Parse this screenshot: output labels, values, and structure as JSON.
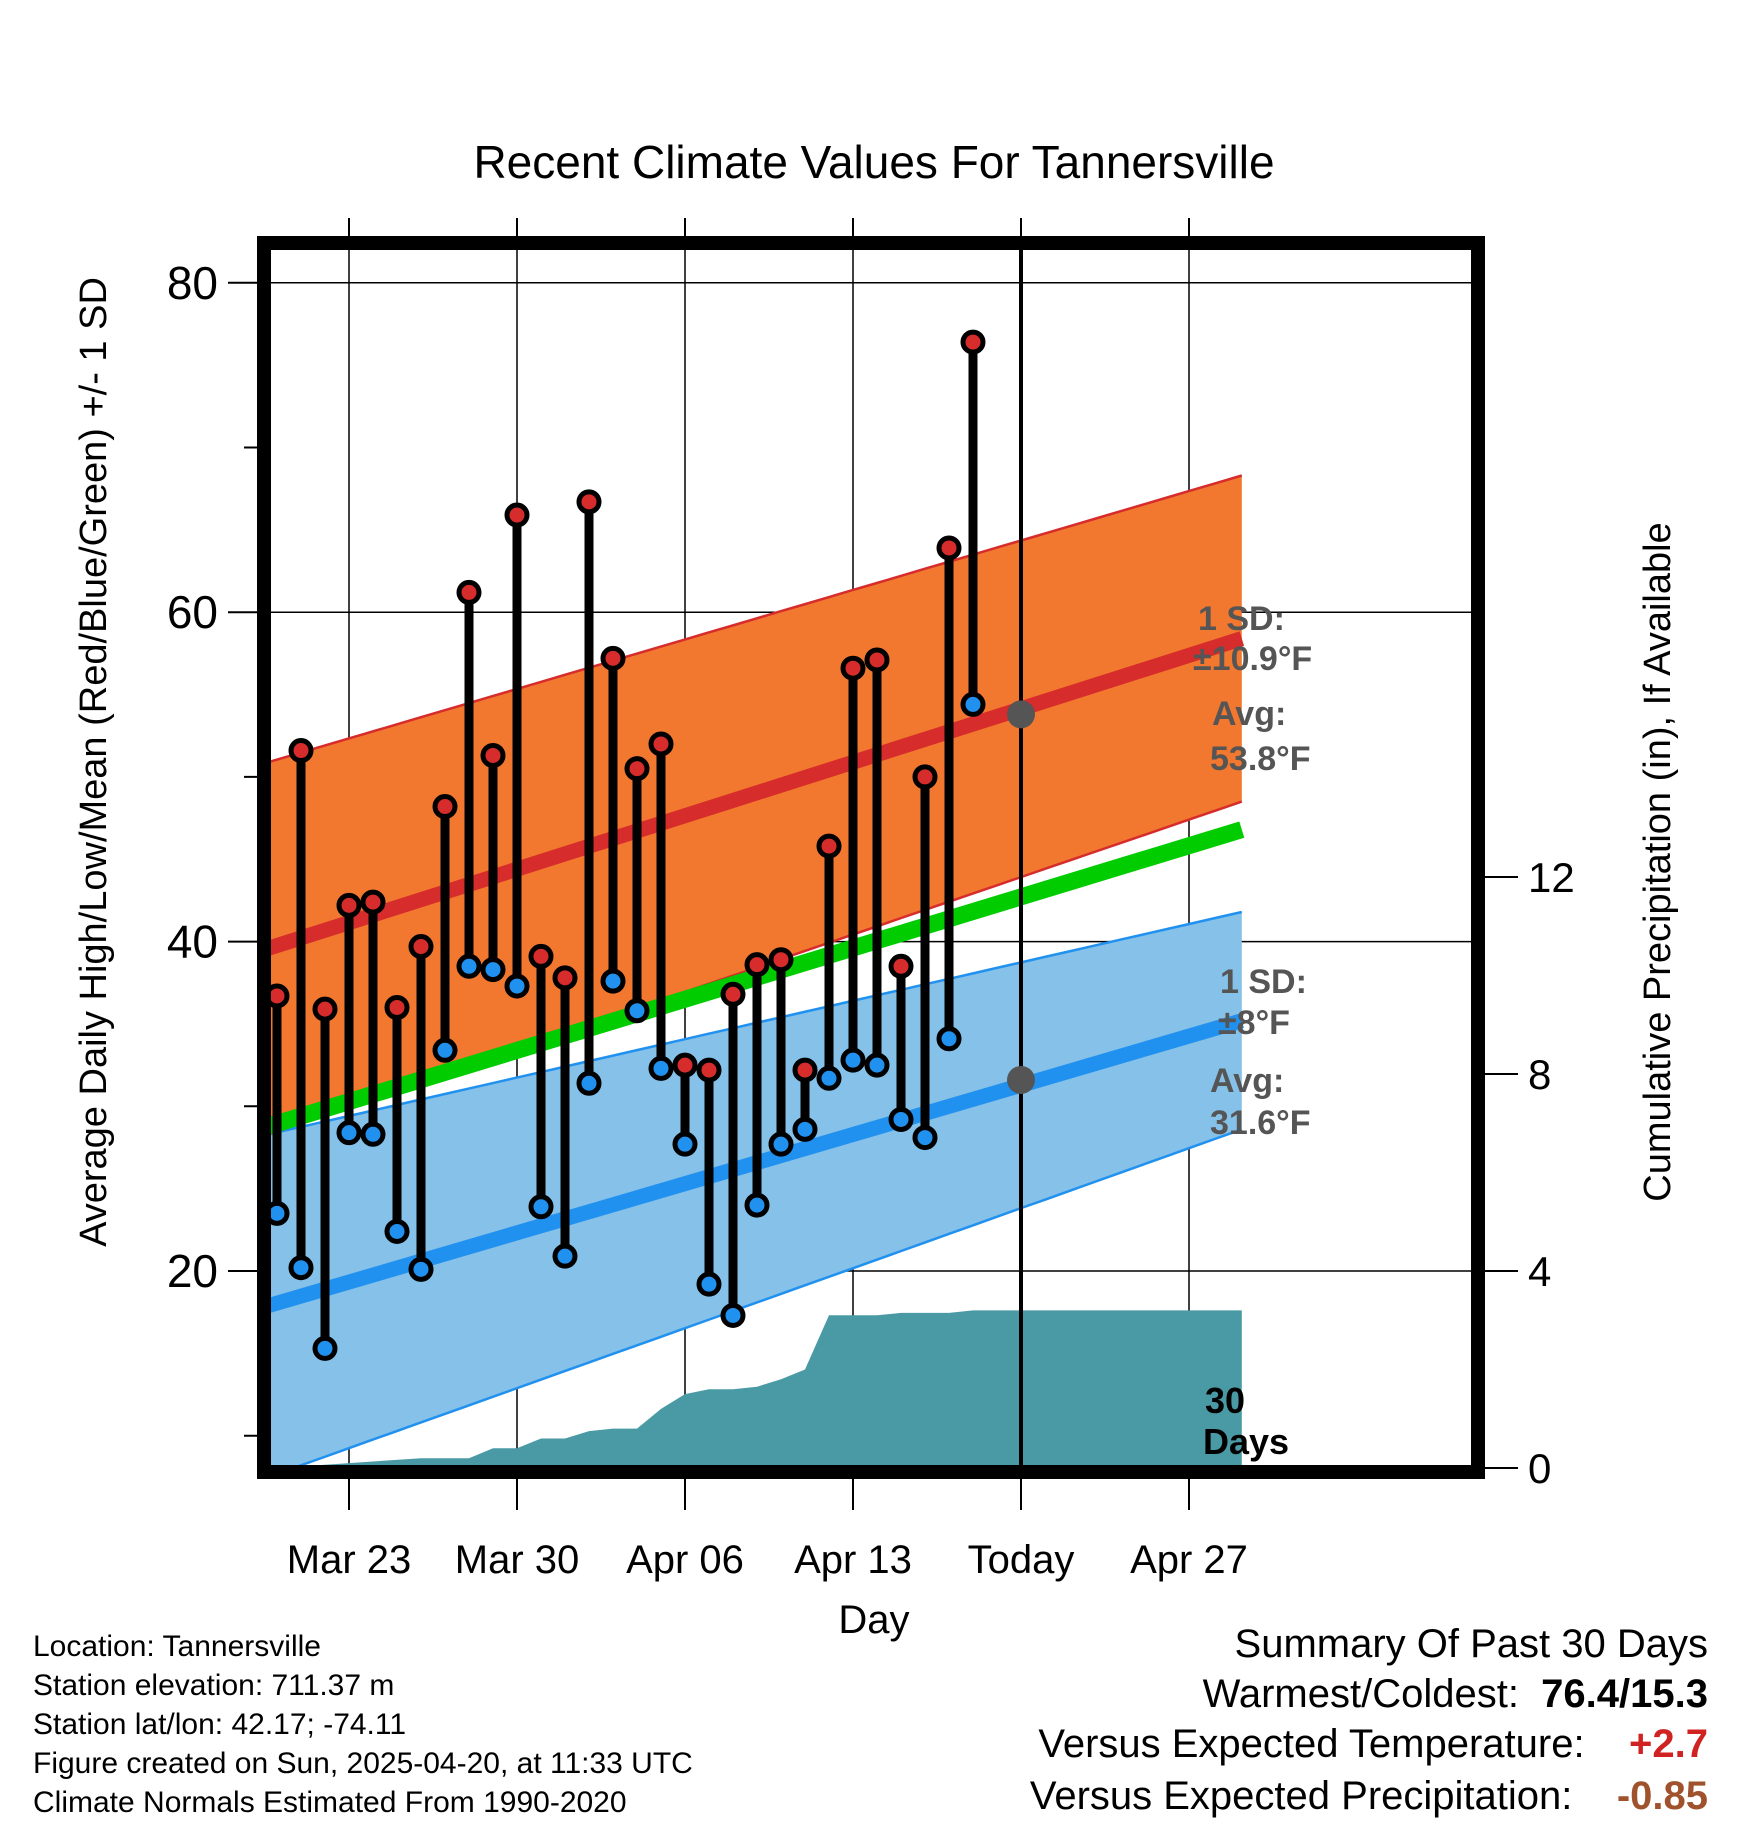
{
  "chart_data": {
    "type": "line",
    "title": "Recent Climate Values For Tannersville",
    "xlabel": "Day",
    "ylabel_left": "Average Daily High/Low/Mean (Red/Blue/Green) +/- 1 SD",
    "ylabel_right": "Cumulative Precipitation (in), If Available",
    "x_ticks": [
      "Mar 23",
      "Mar 30",
      "Apr 06",
      "Apr 13",
      "Today",
      "Apr 27"
    ],
    "x_tick_days": [
      3,
      10,
      17,
      24,
      31,
      38
    ],
    "x_range_days": [
      -0.3,
      40.2
    ],
    "ylim_left": [
      8,
      82
    ],
    "y_ticks_left": [
      20,
      40,
      60,
      80
    ],
    "ylim_right": [
      0,
      24.7
    ],
    "y_ticks_right": [
      0,
      4,
      8,
      12
    ],
    "grid": true,
    "today_day": 31,
    "days": [
      0,
      1,
      2,
      3,
      4,
      5,
      6,
      7,
      8,
      9,
      10,
      11,
      12,
      13,
      14,
      15,
      16,
      17,
      18,
      19,
      20,
      21,
      22,
      23,
      24,
      25,
      26,
      27,
      28,
      29,
      30
    ],
    "series": [
      {
        "name": "High",
        "values": [
          36.7,
          51.6,
          35.9,
          42.2,
          42.4,
          36.0,
          39.7,
          48.2,
          61.2,
          51.3,
          65.9,
          39.1,
          37.8,
          66.7,
          57.2,
          50.5,
          52.0,
          32.5,
          32.2,
          36.8,
          38.6,
          38.9,
          32.2,
          45.8,
          56.6,
          57.1,
          38.5,
          50.0,
          63.9,
          76.4,
          null
        ]
      },
      {
        "name": "Low",
        "values": [
          23.5,
          20.2,
          15.3,
          28.4,
          28.3,
          22.4,
          20.1,
          33.4,
          38.5,
          38.3,
          37.3,
          23.9,
          20.9,
          31.4,
          37.6,
          35.8,
          32.3,
          27.7,
          19.2,
          17.3,
          24.0,
          27.7,
          28.6,
          31.7,
          32.8,
          32.5,
          29.2,
          28.1,
          34.1,
          54.4,
          null
        ]
      }
    ],
    "normal_high": {
      "start": 39.6,
      "end": 58.4,
      "sd_start": 11.3,
      "sd_end": 9.9
    },
    "normal_low": {
      "start": 17.9,
      "end": 35.2,
      "sd_start": 10.4,
      "sd_end": 6.6
    },
    "normal_mean": {
      "start": 28.8,
      "end": 46.8
    },
    "precip_days": [
      0,
      3,
      6,
      8,
      9,
      10,
      11,
      12,
      13,
      14,
      15,
      16,
      17,
      18,
      19,
      20,
      21,
      22,
      23,
      24,
      25,
      26,
      27,
      28,
      29,
      30,
      40.2
    ],
    "precip_cumulative": [
      0,
      0.1,
      0.2,
      0.2,
      0.4,
      0.4,
      0.6,
      0.6,
      0.75,
      0.8,
      0.8,
      1.2,
      1.5,
      1.6,
      1.6,
      1.65,
      1.8,
      2.0,
      3.1,
      3.1,
      3.1,
      3.15,
      3.15,
      3.15,
      3.2,
      3.2,
      3.2
    ],
    "colors": {
      "high_band": "#f2772f",
      "high_line": "#d62c2b",
      "low_band": "#85c1e8",
      "low_line": "#2191f0",
      "mean_line": "#00cc00",
      "precip": "#4a9aa5",
      "annotation": "#555555",
      "summary_warm": "#d12222",
      "summary_precip": "#a0522d"
    },
    "annotations": {
      "high_sd_label": "1 SD:",
      "high_sd_value": "±10.9°F",
      "high_avg_label": "Avg:",
      "high_avg_value": "53.8°F",
      "high_avg": 53.8,
      "low_sd_label": "1 SD:",
      "low_sd_value": "±8°F",
      "low_avg_label": "Avg:",
      "low_avg_value": "31.6°F",
      "low_avg": 31.6,
      "window_number": "30",
      "window_unit": "Days"
    }
  },
  "footer": {
    "location": "Location: Tannersville",
    "elevation": "Station elevation: 711.37 m",
    "latlon": "Station lat/lon: 42.17; -74.11",
    "created": "Figure created on Sun, 2025-04-20, at 11:33 UTC",
    "normals": "Climate Normals Estimated From 1990-2020"
  },
  "summary": {
    "heading": "Summary Of Past 30 Days",
    "warmest_label": "Warmest/Coldest:",
    "warmest_value": "76.4/15.3",
    "temp_label": "Versus Expected Temperature:",
    "temp_value": "+2.7",
    "precip_label": "Versus Expected Precipitation:",
    "precip_value": "-0.85"
  }
}
